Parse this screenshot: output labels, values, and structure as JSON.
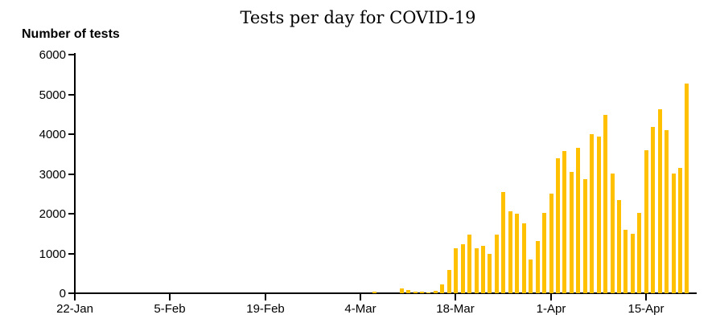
{
  "title": "Tests per day for COVID-19",
  "y_axis_title": "Number of tests",
  "colors": {
    "bar": "#FFC000",
    "axis": "#000000",
    "text": "#000000",
    "background": "#FFFFFF"
  },
  "chart_data": {
    "type": "bar",
    "title": "Tests per day for COVID-19",
    "xlabel": "",
    "ylabel": "Number of tests",
    "ylim": [
      0,
      6000
    ],
    "y_ticks": [
      0,
      1000,
      2000,
      3000,
      4000,
      5000,
      6000
    ],
    "x_tick_labels": [
      "22-Jan",
      "5-Feb",
      "19-Feb",
      "4-Mar",
      "18-Mar",
      "1-Apr",
      "15-Apr"
    ],
    "x_tick_day_indices": [
      0,
      14,
      28,
      42,
      56,
      70,
      84
    ],
    "grid": false,
    "legend": false,
    "bar_color": "#FFC000",
    "categories": [
      "22-Jan",
      "23-Jan",
      "24-Jan",
      "25-Jan",
      "26-Jan",
      "27-Jan",
      "28-Jan",
      "29-Jan",
      "30-Jan",
      "31-Jan",
      "1-Feb",
      "2-Feb",
      "3-Feb",
      "4-Feb",
      "5-Feb",
      "6-Feb",
      "7-Feb",
      "8-Feb",
      "9-Feb",
      "10-Feb",
      "11-Feb",
      "12-Feb",
      "13-Feb",
      "14-Feb",
      "15-Feb",
      "16-Feb",
      "17-Feb",
      "18-Feb",
      "19-Feb",
      "20-Feb",
      "21-Feb",
      "22-Feb",
      "23-Feb",
      "24-Feb",
      "25-Feb",
      "26-Feb",
      "27-Feb",
      "28-Feb",
      "29-Feb",
      "1-Mar",
      "2-Mar",
      "3-Mar",
      "4-Mar",
      "5-Mar",
      "6-Mar",
      "7-Mar",
      "8-Mar",
      "9-Mar",
      "10-Mar",
      "11-Mar",
      "12-Mar",
      "13-Mar",
      "14-Mar",
      "15-Mar",
      "16-Mar",
      "17-Mar",
      "18-Mar",
      "19-Mar",
      "20-Mar",
      "21-Mar",
      "22-Mar",
      "23-Mar",
      "24-Mar",
      "25-Mar",
      "26-Mar",
      "27-Mar",
      "28-Mar",
      "29-Mar",
      "30-Mar",
      "31-Mar",
      "1-Apr",
      "2-Apr",
      "3-Apr",
      "4-Apr",
      "5-Apr",
      "6-Apr",
      "7-Apr",
      "8-Apr",
      "9-Apr",
      "10-Apr",
      "11-Apr",
      "12-Apr",
      "13-Apr",
      "14-Apr",
      "15-Apr",
      "16-Apr",
      "17-Apr",
      "18-Apr",
      "19-Apr",
      "20-Apr",
      "21-Apr"
    ],
    "values": [
      0,
      0,
      0,
      0,
      0,
      0,
      0,
      0,
      0,
      0,
      0,
      0,
      0,
      0,
      0,
      0,
      0,
      0,
      0,
      0,
      0,
      0,
      0,
      0,
      0,
      0,
      0,
      0,
      0,
      0,
      0,
      0,
      0,
      0,
      0,
      0,
      0,
      0,
      0,
      0,
      0,
      0,
      0,
      0,
      35,
      0,
      0,
      0,
      115,
      80,
      50,
      35,
      30,
      65,
      230,
      590,
      1140,
      1230,
      1480,
      1130,
      1200,
      980,
      1480,
      2550,
      2060,
      2000,
      1750,
      840,
      1310,
      2020,
      2495,
      3390,
      3570,
      3055,
      3660,
      2865,
      4000,
      3930,
      4485,
      3000,
      2350,
      1600,
      1500,
      2030,
      3600,
      4190,
      4620,
      4100,
      3020,
      3155,
      5270
    ]
  },
  "plot_geometry_note": "y-axis 0 at bottom, 6000 at top; x-axis spans 22-Jan to 21-Apr with ticks every 14 days"
}
